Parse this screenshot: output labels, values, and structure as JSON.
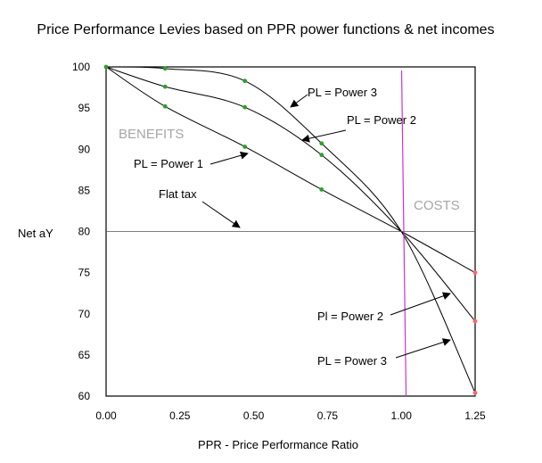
{
  "chart_data": {
    "type": "line",
    "title": "Price Performance Levies based on PPR power functions & net incomes",
    "xlabel": "PPR - Price Performance Ratio",
    "ylabel": "Net aY",
    "xlim": [
      0,
      1.25
    ],
    "ylim": [
      60,
      100
    ],
    "x_ticks": [
      "0.00",
      "0.25",
      "0.50",
      "0.75",
      "1.00",
      "1.25"
    ],
    "y_ticks": [
      "100",
      "95",
      "90",
      "85",
      "80",
      "75",
      "70",
      "65",
      "60"
    ],
    "grid": false,
    "series": [
      {
        "x": [
          0,
          0.2,
          0.47,
          0.73,
          1.0,
          1.25
        ],
        "values": [
          100,
          95.2,
          90.3,
          85.1,
          80,
          75.0
        ]
      },
      {
        "x": [
          0,
          0.2,
          0.47,
          0.73,
          1.0,
          1.25
        ],
        "values": [
          100,
          97.6,
          95.1,
          89.3,
          80,
          69.1
        ]
      },
      {
        "x": [
          0,
          0.2,
          0.47,
          0.73,
          1.0,
          1.25
        ],
        "values": [
          100,
          99.8,
          98.3,
          90.7,
          80,
          60.4
        ]
      },
      {
        "x": [
          0,
          1.25
        ],
        "values": [
          80,
          80
        ]
      }
    ],
    "vline": {
      "x": 1.01,
      "color": "#cc33cc"
    },
    "marker_color_benefit": "#2ca02c",
    "marker_color_cost": "#ff6666",
    "regions": {
      "benefits": "BENEFITS",
      "costs": "COSTS"
    },
    "annotations": [
      {
        "text": "PL = Power 3"
      },
      {
        "text": "PL = Power 2"
      },
      {
        "text": "PL = Power 1"
      },
      {
        "text": "Flat tax"
      },
      {
        "text": "Pl = Power 2"
      },
      {
        "text": "PL = Power 3"
      }
    ]
  }
}
